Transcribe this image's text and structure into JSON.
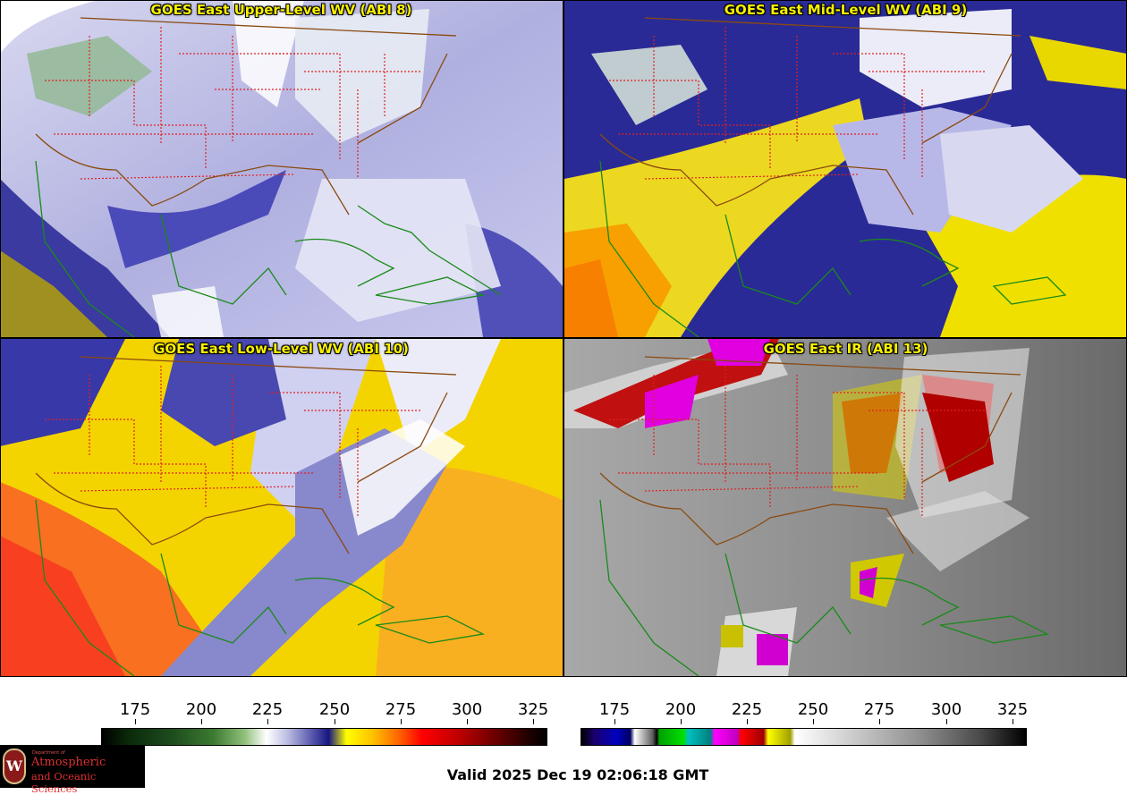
{
  "panels": [
    {
      "title": "GOES East Upper-Level WV (ABI 8)",
      "colormap": "water-vapor"
    },
    {
      "title": "GOES East Mid-Level WV (ABI 9)",
      "colormap": "water-vapor"
    },
    {
      "title": "GOES East Low-Level WV (ABI 10)",
      "colormap": "water-vapor"
    },
    {
      "title": "GOES East IR (ABI 13)",
      "colormap": "infrared"
    }
  ],
  "colorbars": [
    {
      "name": "water-vapor",
      "ticks": [
        "175",
        "200",
        "225",
        "250",
        "275",
        "300",
        "325"
      ]
    },
    {
      "name": "infrared",
      "ticks": [
        "175",
        "200",
        "225",
        "250",
        "275",
        "300",
        "325"
      ]
    }
  ],
  "footer": {
    "valid_time": "Valid 2025 Dec 19 02:06:18 GMT"
  },
  "logo": {
    "crest_letter": "W",
    "department": "Department of",
    "line1": "Atmospheric",
    "line2": "and Oceanic Sciences"
  },
  "colors": {
    "title_text": "#f8f000",
    "state_borders": "#e02020",
    "country_borders": "#8a4a10",
    "coastlines": "#1a8a1a"
  }
}
